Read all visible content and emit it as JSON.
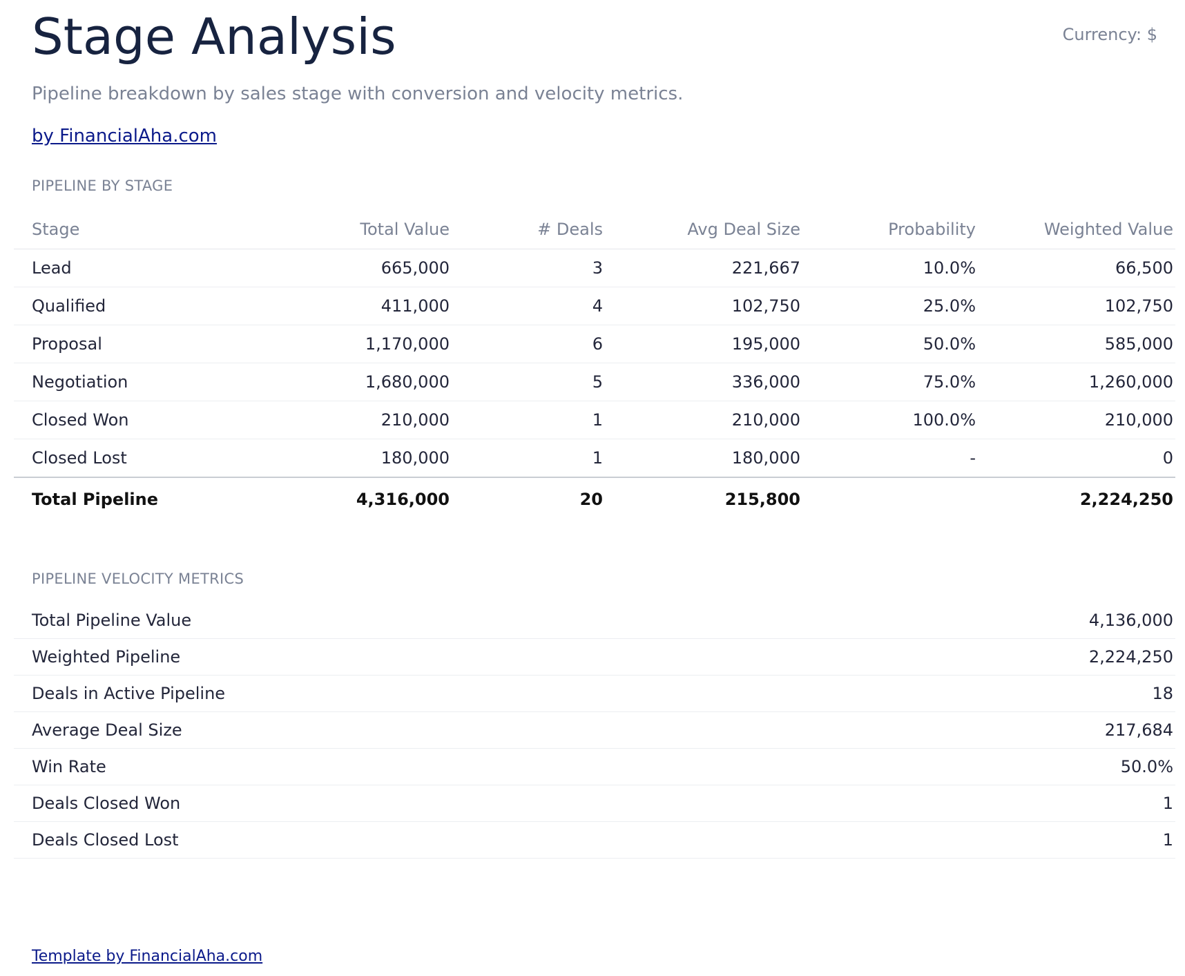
{
  "header": {
    "title": "Stage Analysis",
    "currency": "Currency: $",
    "subtitle": "Pipeline breakdown by sales stage with conversion and velocity metrics.",
    "credit_link": "by FinancialAha.com"
  },
  "pipeline_by_stage": {
    "section_label": "PIPELINE BY STAGE",
    "columns": {
      "stage": "Stage",
      "total_value": "Total Value",
      "deals": "# Deals",
      "avg_deal_size": "Avg Deal Size",
      "probability": "Probability",
      "weighted_value": "Weighted Value"
    },
    "rows": [
      {
        "stage": "Lead",
        "total_value": "665,000",
        "deals": "3",
        "avg_deal_size": "221,667",
        "probability": "10.0%",
        "weighted_value": "66,500"
      },
      {
        "stage": "Qualified",
        "total_value": "411,000",
        "deals": "4",
        "avg_deal_size": "102,750",
        "probability": "25.0%",
        "weighted_value": "102,750"
      },
      {
        "stage": "Proposal",
        "total_value": "1,170,000",
        "deals": "6",
        "avg_deal_size": "195,000",
        "probability": "50.0%",
        "weighted_value": "585,000"
      },
      {
        "stage": "Negotiation",
        "total_value": "1,680,000",
        "deals": "5",
        "avg_deal_size": "336,000",
        "probability": "75.0%",
        "weighted_value": "1,260,000"
      },
      {
        "stage": "Closed Won",
        "total_value": "210,000",
        "deals": "1",
        "avg_deal_size": "210,000",
        "probability": "100.0%",
        "weighted_value": "210,000"
      },
      {
        "stage": "Closed Lost",
        "total_value": "180,000",
        "deals": "1",
        "avg_deal_size": "180,000",
        "probability": "-",
        "weighted_value": "0"
      }
    ],
    "total": {
      "stage": "Total Pipeline",
      "total_value": "4,316,000",
      "deals": "20",
      "avg_deal_size": "215,800",
      "probability": "",
      "weighted_value": "2,224,250"
    }
  },
  "velocity": {
    "section_label": "PIPELINE VELOCITY METRICS",
    "metrics": [
      {
        "label": "Total Pipeline Value",
        "value": "4,136,000"
      },
      {
        "label": "Weighted Pipeline",
        "value": "2,224,250"
      },
      {
        "label": "Deals in Active Pipeline",
        "value": "18"
      },
      {
        "label": "Average Deal Size",
        "value": "217,684"
      },
      {
        "label": "Win Rate",
        "value": "50.0%"
      },
      {
        "label": "Deals Closed Won",
        "value": "1"
      },
      {
        "label": "Deals Closed Lost",
        "value": "1"
      }
    ]
  },
  "footer": {
    "link": "Template by FinancialAha.com"
  }
}
